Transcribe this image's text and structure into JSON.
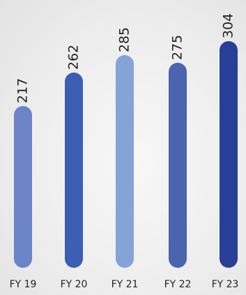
{
  "chart_data": {
    "type": "bar",
    "categories": [
      "FY 19",
      "FY 20",
      "FY 21",
      "FY 22",
      "FY 23"
    ],
    "values": [
      217,
      262,
      285,
      275,
      304
    ],
    "value_labels": [
      "217",
      "262",
      "285",
      "275",
      "304"
    ],
    "title": "",
    "xlabel": "",
    "ylabel": "",
    "ylim": [
      0,
      304
    ],
    "grid": false,
    "legend": "none",
    "bar_colors": [
      "#6b84c7",
      "#3c5eb3",
      "#86a3d8",
      "#4a64b0",
      "#283f98"
    ],
    "label_color": "#1e1e1e"
  }
}
